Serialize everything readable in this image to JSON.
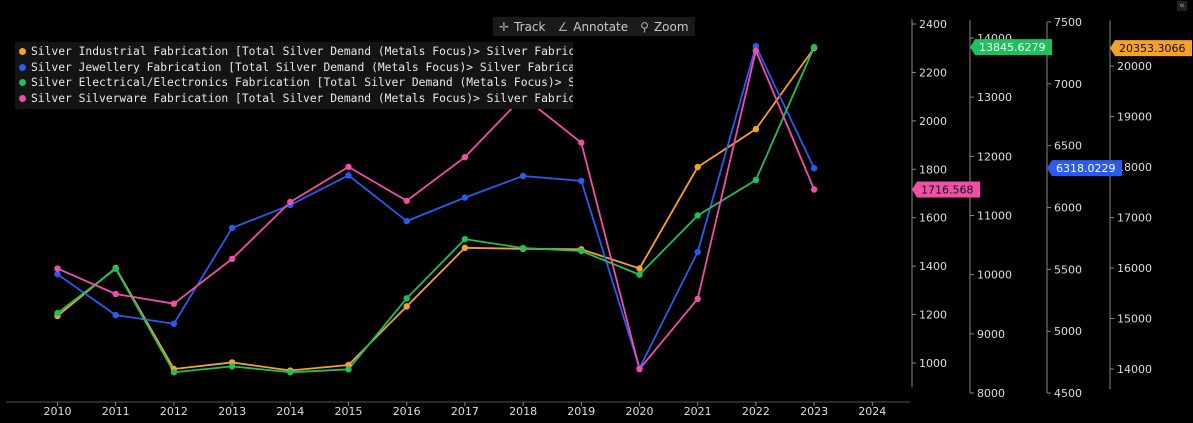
{
  "toolbar": {
    "track_label": "Track",
    "annotate_label": "Annotate",
    "zoom_label": "Zoom"
  },
  "chart_data": {
    "type": "line",
    "title": "",
    "xlabel": "",
    "ylabel": "",
    "x": [
      2010,
      2011,
      2012,
      2013,
      2014,
      2015,
      2016,
      2017,
      2018,
      2019,
      2020,
      2021,
      2022,
      2023
    ],
    "x_ticks": [
      "2010",
      "2011",
      "2012",
      "2013",
      "2014",
      "2015",
      "2016",
      "2017",
      "2018",
      "2019",
      "2020",
      "2021",
      "2022",
      "2023",
      "2024"
    ],
    "xlim": [
      2009.8,
      2024.8
    ],
    "legend_position": "top-left",
    "grid": false,
    "series": [
      {
        "name": "Silver Industrial Fabrication [Total Silver Demand (Metals Focus)> Silver Fabrication]",
        "color": "#f7a12c",
        "axis": "axis4",
        "values": [
          15050,
          16000,
          14000,
          14130,
          13970,
          14080,
          15240,
          16400,
          16380,
          16370,
          15990,
          18000,
          18750,
          20353.3066
        ],
        "last_value_label": "20353.3066"
      },
      {
        "name": "Silver Jewellery Fabrication [Total Silver Demand (Metals Focus)> Silver Fabrication]",
        "color": "#2a5bee",
        "axis": "axis3",
        "values": [
          5460,
          5130,
          5060,
          5835,
          6020,
          6260,
          5890,
          6080,
          6255,
          6215,
          4700,
          5640,
          7305,
          6318.0229
        ],
        "last_value_label": "6318.0229"
      },
      {
        "name": "Silver Electrical/Electronics Fabrication [Total Silver Demand (Metals Focus)> Silver Fabr",
        "color": "#1ec05b",
        "axis": "axis2",
        "values": [
          9350,
          10100,
          8350,
          8450,
          8350,
          8400,
          9600,
          10600,
          10450,
          10400,
          10000,
          11000,
          11600,
          13845.6279
        ],
        "last_value_label": "13845.6279"
      },
      {
        "name": "Silver Silverware Fabrication [Total Silver Demand (Metals Focus)> Silver Fabrication]",
        "color": "#f04fa8",
        "axis": "axis1",
        "values": [
          1390,
          1285,
          1245,
          1430,
          1665,
          1810,
          1670,
          1850,
          2100,
          1910,
          975,
          1265,
          2290,
          1716.568
        ],
        "last_value_label": "1716.568"
      }
    ],
    "axes": {
      "axis1": {
        "ylim": [
          900,
          2420
        ],
        "ticks": [
          "1000",
          "1200",
          "1400",
          "1600",
          "1800",
          "2000",
          "2200",
          "2400"
        ]
      },
      "axis2": {
        "ylim": [
          8000,
          14300
        ],
        "ticks": [
          "8000",
          "9000",
          "10000",
          "11000",
          "12000",
          "13000",
          "14000"
        ]
      },
      "axis3": {
        "ylim": [
          4500,
          7500
        ],
        "ticks": [
          "4500",
          "5000",
          "5500",
          "6000",
          "6500",
          "7000",
          "7500"
        ]
      },
      "axis4": {
        "ylim": [
          13600,
          20900
        ],
        "ticks": [
          "14000",
          "15000",
          "16000",
          "17000",
          "18000",
          "19000",
          "20000"
        ]
      }
    }
  }
}
